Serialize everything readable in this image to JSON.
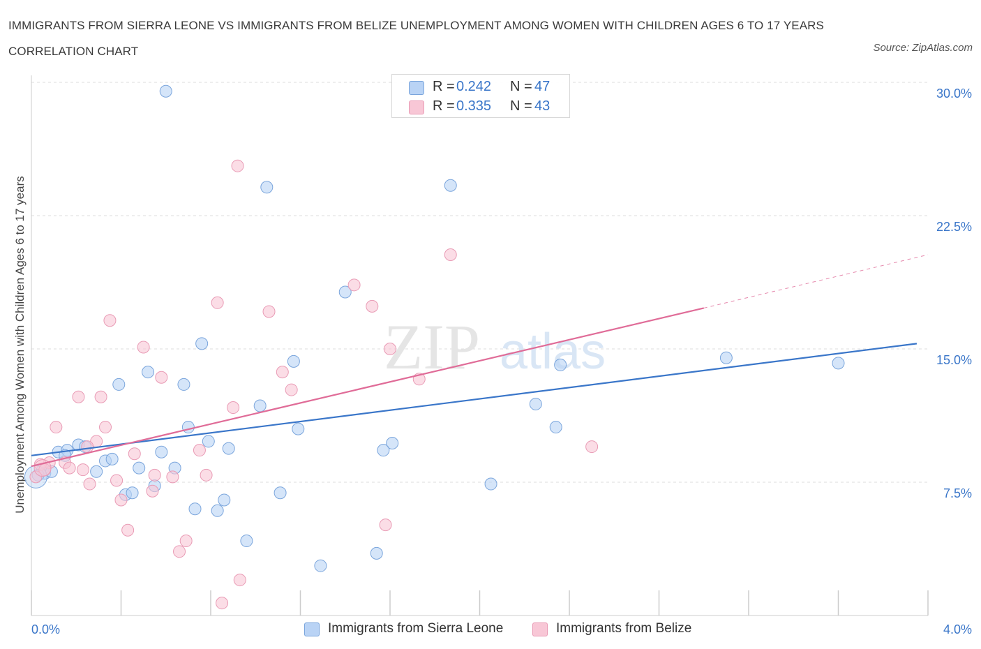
{
  "title": "IMMIGRANTS FROM SIERRA LEONE VS IMMIGRANTS FROM BELIZE UNEMPLOYMENT AMONG WOMEN WITH CHILDREN AGES 6 TO 17 YEARS CORRELATION CHART",
  "source": "Source: ZipAtlas.com",
  "watermark": {
    "zip": "ZIP",
    "atlas": "atlas"
  },
  "legend": {
    "rows": [
      {
        "r_label": "R =",
        "r_value": "0.242",
        "n_label": "N =",
        "n_value": "47"
      },
      {
        "r_label": "R =",
        "r_value": "0.335",
        "n_label": "N =",
        "n_value": "43"
      }
    ]
  },
  "colors": {
    "blue_fill": "#b9d3f5",
    "blue_stroke": "#7aa5dc",
    "blue_line": "#3a76c9",
    "pink_fill": "#f8c7d6",
    "pink_stroke": "#e99bb5",
    "pink_line": "#e06c98",
    "axis_text": "#3a76c9",
    "grid": "#dddddd"
  },
  "chart_data": {
    "type": "scatter",
    "title": "IMMIGRANTS FROM SIERRA LEONE VS IMMIGRANTS FROM BELIZE UNEMPLOYMENT AMONG WOMEN WITH CHILDREN AGES 6 TO 17 YEARS CORRELATION CHART",
    "xlabel": "",
    "ylabel": "Unemployment Among Women with Children Ages 6 to 17 years",
    "xlim": [
      0,
      4
    ],
    "ylim": [
      0,
      30
    ],
    "x_tick_labels": [
      "0.0%",
      "4.0%"
    ],
    "y_ticks": [
      7.5,
      15,
      22.5,
      30
    ],
    "y_tick_labels": [
      "7.5%",
      "15.0%",
      "22.5%",
      "30.0%"
    ],
    "grid": true,
    "legend_position": "top-center",
    "series": [
      {
        "name": "Immigrants from Sierra Leone",
        "color": "#7aa5dc",
        "points": [
          [
            0.6,
            29.5
          ],
          [
            1.05,
            24.1
          ],
          [
            1.87,
            24.2
          ],
          [
            1.4,
            18.2
          ],
          [
            0.76,
            15.3
          ],
          [
            1.17,
            14.3
          ],
          [
            0.52,
            13.7
          ],
          [
            0.39,
            13.0
          ],
          [
            0.68,
            13.0
          ],
          [
            3.1,
            14.5
          ],
          [
            3.6,
            14.2
          ],
          [
            2.36,
            14.1
          ],
          [
            1.02,
            11.8
          ],
          [
            2.25,
            11.9
          ],
          [
            0.7,
            10.6
          ],
          [
            1.19,
            10.5
          ],
          [
            2.34,
            10.6
          ],
          [
            0.79,
            9.8
          ],
          [
            0.88,
            9.4
          ],
          [
            1.61,
            9.7
          ],
          [
            1.57,
            9.3
          ],
          [
            0.58,
            9.2
          ],
          [
            0.12,
            9.2
          ],
          [
            0.16,
            9.3
          ],
          [
            0.21,
            9.6
          ],
          [
            0.24,
            9.5
          ],
          [
            0.15,
            9.0
          ],
          [
            0.33,
            8.7
          ],
          [
            0.36,
            8.8
          ],
          [
            0.48,
            8.3
          ],
          [
            0.64,
            8.3
          ],
          [
            0.29,
            8.1
          ],
          [
            0.05,
            8.2
          ],
          [
            0.06,
            8.0
          ],
          [
            0.09,
            8.1
          ],
          [
            0.03,
            7.9
          ],
          [
            0.55,
            7.3
          ],
          [
            2.05,
            7.4
          ],
          [
            0.42,
            6.8
          ],
          [
            0.45,
            6.9
          ],
          [
            1.11,
            6.9
          ],
          [
            0.86,
            6.5
          ],
          [
            0.73,
            6.0
          ],
          [
            0.83,
            5.9
          ],
          [
            0.96,
            4.2
          ],
          [
            1.54,
            3.5
          ],
          [
            1.29,
            2.8
          ]
        ]
      },
      {
        "name": "Immigrants from Belize",
        "color": "#e99bb5",
        "points": [
          [
            0.92,
            25.3
          ],
          [
            1.87,
            20.3
          ],
          [
            1.44,
            18.6
          ],
          [
            0.83,
            17.6
          ],
          [
            1.52,
            17.4
          ],
          [
            1.06,
            17.1
          ],
          [
            0.35,
            16.6
          ],
          [
            0.5,
            15.1
          ],
          [
            1.6,
            15.0
          ],
          [
            1.12,
            13.7
          ],
          [
            0.58,
            13.4
          ],
          [
            1.73,
            13.3
          ],
          [
            1.16,
            12.7
          ],
          [
            0.21,
            12.3
          ],
          [
            0.31,
            12.3
          ],
          [
            0.9,
            11.7
          ],
          [
            0.11,
            10.6
          ],
          [
            0.33,
            10.6
          ],
          [
            0.29,
            9.8
          ],
          [
            0.25,
            9.5
          ],
          [
            2.5,
            9.5
          ],
          [
            0.75,
            9.3
          ],
          [
            0.46,
            9.1
          ],
          [
            0.15,
            8.6
          ],
          [
            0.08,
            8.6
          ],
          [
            0.17,
            8.3
          ],
          [
            0.04,
            8.5
          ],
          [
            0.06,
            8.2
          ],
          [
            0.23,
            8.2
          ],
          [
            0.55,
            7.9
          ],
          [
            0.78,
            7.9
          ],
          [
            0.63,
            7.8
          ],
          [
            0.38,
            7.6
          ],
          [
            0.26,
            7.4
          ],
          [
            0.54,
            7.0
          ],
          [
            0.4,
            6.5
          ],
          [
            0.43,
            4.8
          ],
          [
            1.58,
            5.1
          ],
          [
            0.69,
            4.2
          ],
          [
            0.66,
            3.6
          ],
          [
            0.93,
            2.0
          ],
          [
            0.85,
            0.7
          ],
          [
            0.02,
            7.8
          ]
        ]
      }
    ],
    "trendlines": [
      {
        "series": "Immigrants from Sierra Leone",
        "x": [
          0,
          3.95
        ],
        "y": [
          9.0,
          15.3
        ]
      },
      {
        "series": "Immigrants from Belize",
        "x": [
          0,
          3.0
        ],
        "y": [
          8.4,
          17.3
        ],
        "extended_to": [
          4.0,
          20.3
        ]
      }
    ]
  }
}
